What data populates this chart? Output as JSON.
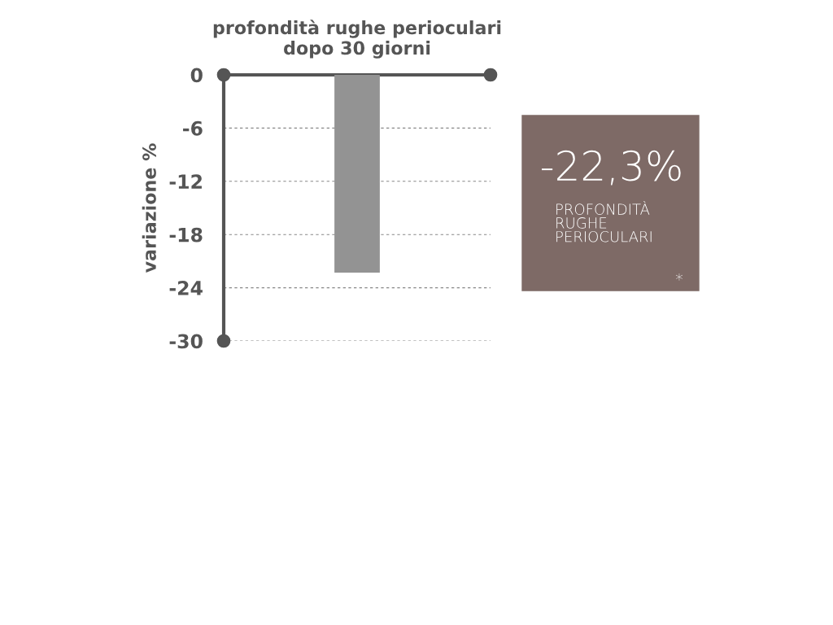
{
  "chart_data": {
    "type": "bar",
    "title": "profondità rughe perioculari\ndopo 30 giorni",
    "ylabel": "variazione %",
    "categories": [
      null
    ],
    "values": [
      -22.3
    ],
    "color": "#939393",
    "ylim": [
      -30,
      0
    ],
    "yticks": [
      -30,
      -24,
      -18,
      -12,
      -6,
      0
    ],
    "grid": "y",
    "annotations": [
      "-22,3%",
      "PROFONDITÀ\nRUGHE\nPERIOCULARI",
      "*"
    ]
  }
}
